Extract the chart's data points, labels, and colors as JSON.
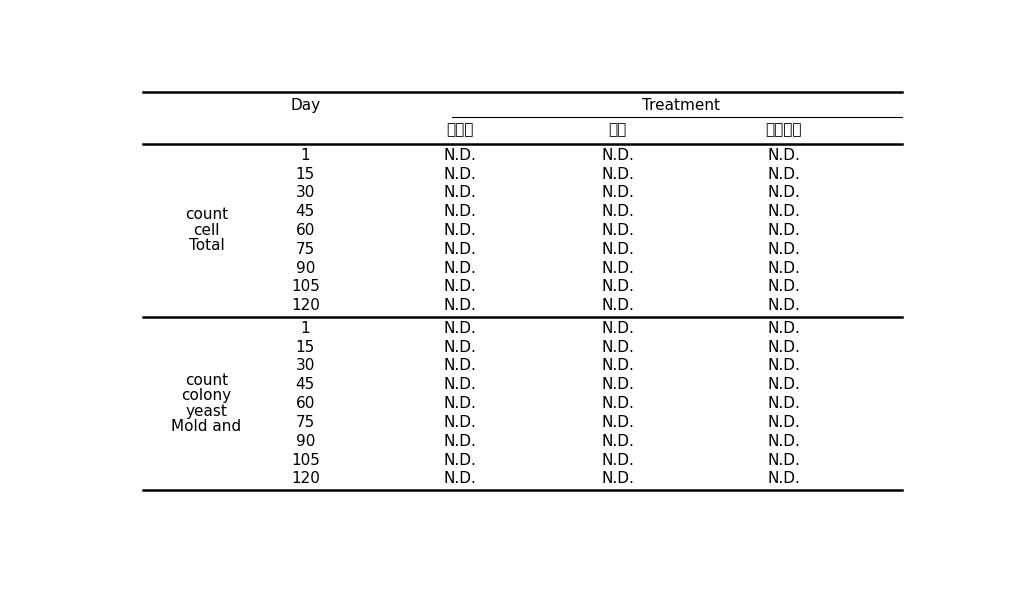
{
  "title_row": "Treatment",
  "header_col1": "Day",
  "sub_headers": [
    "홍고추",
    "간장",
    "머스타드"
  ],
  "row_group1_label": [
    "Total",
    "cell",
    "count"
  ],
  "row_group2_label": [
    "Mold and",
    "yeast",
    "colony",
    "count"
  ],
  "days": [
    1,
    15,
    30,
    45,
    60,
    75,
    90,
    105,
    120
  ],
  "cell_value": "N.D.",
  "bg_color": "#ffffff",
  "text_color": "#000000",
  "line_color": "#000000",
  "font_size": 11,
  "header_font_size": 11
}
